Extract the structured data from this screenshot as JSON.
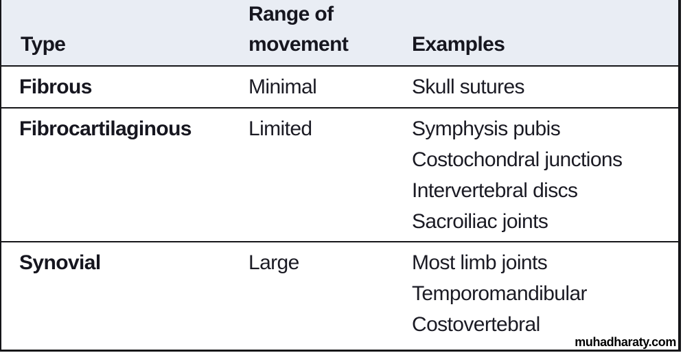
{
  "colors": {
    "header_bg": "#e9edf4",
    "border": "#151518",
    "text": "#1b1b24"
  },
  "watermark": "muhadharaty.com",
  "table": {
    "columns": {
      "type_label": "Type",
      "range_label": "Range of\nmovement",
      "examples_label": "Examples"
    },
    "rows": [
      {
        "type": "Fibrous",
        "range": "Minimal",
        "examples": [
          "Skull sutures"
        ]
      },
      {
        "type": "Fibrocartilaginous",
        "range": "Limited",
        "examples": [
          "Symphysis pubis",
          "Costochondral junctions",
          "Intervertebral discs",
          "Sacroiliac joints"
        ]
      },
      {
        "type": "Synovial",
        "range": "Large",
        "examples": [
          "Most limb joints",
          "Temporomandibular",
          "Costovertebral"
        ]
      }
    ]
  }
}
